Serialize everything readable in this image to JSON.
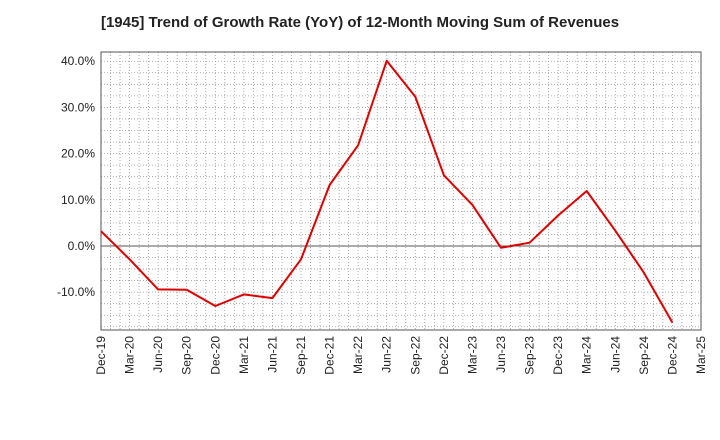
{
  "chart_data": {
    "type": "line",
    "title": "[1945]  Trend of Growth Rate (YoY) of 12-Month Moving Sum of Revenues",
    "xlabel": "",
    "ylabel": "",
    "categories": [
      "Dec-19",
      "Mar-20",
      "Jun-20",
      "Sep-20",
      "Dec-20",
      "Mar-21",
      "Jun-21",
      "Sep-21",
      "Dec-21",
      "Mar-22",
      "Jun-22",
      "Sep-22",
      "Dec-22",
      "Mar-23",
      "Jun-23",
      "Sep-23",
      "Dec-23",
      "Mar-24",
      "Jun-24",
      "Sep-24",
      "Dec-24",
      "Mar-25"
    ],
    "series": [
      {
        "values": [
          3.2,
          -2.9,
          -9.4,
          -9.5,
          -13.0,
          -10.5,
          -11.3,
          -2.9,
          13.2,
          21.8,
          40.1,
          32.3,
          15.3,
          8.9,
          -0.4,
          0.7,
          6.6,
          11.9,
          3.3,
          -5.8,
          -16.6,
          null
        ]
      }
    ],
    "y_tick_labels": [
      "40.0%",
      "30.0%",
      "20.0%",
      "10.0%",
      "0.0%",
      "-10.0%"
    ],
    "y_ticks": [
      40,
      30,
      20,
      10,
      0,
      -10
    ],
    "ylim": [
      -18.2,
      42.0
    ],
    "grid": true,
    "line_color": "#dd0000",
    "zero_line_color": "#555555"
  }
}
